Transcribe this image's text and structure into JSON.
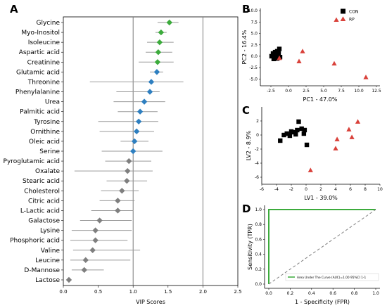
{
  "panels": [
    {
      "letter": "A"
    },
    {
      "letter": "B"
    },
    {
      "letter": "C"
    },
    {
      "letter": "D"
    }
  ],
  "chart_data": [
    {
      "panel": "A",
      "type": "scatter",
      "subtype": "vip-dot-plot-with-error-bars",
      "xlabel": "VIP Scores",
      "ylabel": "",
      "xlim": [
        0,
        2.5
      ],
      "xticks": [
        "0.0",
        "0.5",
        "1.0",
        "1.5",
        "2.0",
        "2.5"
      ],
      "reference_lines": [
        1.0,
        2.0
      ],
      "categories": [
        "Glycine",
        "Myo-Inositol",
        "Isoleucine",
        "Aspartic acid",
        "Creatinine",
        "Glutamic acid",
        "Threonine",
        "Phenylalanine",
        "Urea",
        "Palmitic acid",
        "Tyrosine",
        "Ornithine",
        "Oleic acid",
        "Serine",
        "Pyroglutamic acid",
        "Oxalate",
        "Stearic acid",
        "Cholesterol",
        "Citric acid",
        "L-Lactic acid",
        "Galactose",
        "Lysine",
        "Phosphoric acid",
        "Valine",
        "Leucine",
        "D-Mannose",
        "Lactose"
      ],
      "values": [
        1.52,
        1.4,
        1.38,
        1.36,
        1.35,
        1.34,
        1.26,
        1.24,
        1.16,
        1.1,
        1.08,
        1.05,
        1.02,
        1.0,
        0.94,
        0.92,
        0.91,
        0.84,
        0.78,
        0.78,
        0.52,
        0.46,
        0.46,
        0.42,
        0.32,
        0.3,
        0.08
      ],
      "err_low": [
        1.35,
        1.32,
        1.2,
        1.18,
        1.08,
        1.24,
        0.38,
        0.76,
        0.72,
        0.78,
        0.5,
        0.52,
        0.82,
        0.55,
        0.6,
        0.16,
        0.62,
        0.54,
        0.52,
        0.4,
        0.24,
        0.12,
        0.1,
        0.14,
        0.1,
        0.12,
        0.06
      ],
      "err_high": [
        1.65,
        1.48,
        1.58,
        1.56,
        1.58,
        1.43,
        1.72,
        1.38,
        1.46,
        1.35,
        1.36,
        1.3,
        1.22,
        1.42,
        1.26,
        1.28,
        1.2,
        1.08,
        1.02,
        1.0,
        0.98,
        0.98,
        0.92,
        1.1,
        0.96,
        0.58,
        0.1
      ],
      "colors": [
        "#3cab3c",
        "#3cab3c",
        "#3cab3c",
        "#3cab3c",
        "#3cab3c",
        "#2e7fc0",
        "#2e7fc0",
        "#2e7fc0",
        "#2e7fc0",
        "#2e7fc0",
        "#2e7fc0",
        "#2e7fc0",
        "#2e7fc0",
        "#2e7fc0",
        "#7f7f7f",
        "#7f7f7f",
        "#7f7f7f",
        "#7f7f7f",
        "#7f7f7f",
        "#7f7f7f",
        "#7f7f7f",
        "#7f7f7f",
        "#7f7f7f",
        "#7f7f7f",
        "#7f7f7f",
        "#7f7f7f",
        "#7f7f7f"
      ]
    },
    {
      "panel": "B",
      "type": "scatter",
      "xlabel": "PC1 - 47.0%",
      "ylabel": "PC2 - 16.4%",
      "xlim": [
        -4,
        13
      ],
      "ylim": [
        -6.5,
        10.5
      ],
      "xticks": [
        -2.5,
        0.0,
        2.5,
        5.0,
        7.5,
        10.0,
        12.5
      ],
      "xtick_labels": [
        "-2.5",
        "0.0",
        "2.5",
        "5.0",
        "7.5",
        "10.0",
        "12.5"
      ],
      "yticks": [
        -5.0,
        -2.5,
        0.0,
        2.5,
        5.0,
        7.5,
        10.0
      ],
      "ytick_labels": [
        "-5.0",
        "-2.5",
        "0.0",
        "2.5",
        "5.0",
        "7.5",
        "10.0"
      ],
      "legend": {
        "position": "top-right",
        "entries": [
          "CON",
          "RP"
        ]
      },
      "series": [
        {
          "name": "CON",
          "color": "#000000",
          "marker": "square",
          "x": [
            -2.4,
            -2.2,
            -2.0,
            -1.9,
            -1.8,
            -1.7,
            -1.6,
            -1.5,
            -1.4,
            -1.3,
            -1.2,
            -2.1,
            -1.9,
            -1.6,
            -1.5
          ],
          "y": [
            0.0,
            0.6,
            -0.4,
            0.9,
            0.3,
            -0.3,
            1.1,
            0.1,
            0.6,
            1.6,
            -0.2,
            -0.6,
            0.4,
            -0.5,
            0.8
          ]
        },
        {
          "name": "RP",
          "color": "#d9413a",
          "marker": "triangle",
          "x": [
            -1.3,
            1.5,
            2.0,
            6.8,
            6.5,
            11.0
          ],
          "y": [
            -0.4,
            -1.1,
            1.1,
            8.0,
            -1.6,
            -4.6
          ]
        }
      ]
    },
    {
      "panel": "C",
      "type": "scatter",
      "xlabel": "LV1 - 39.0%",
      "ylabel": "LV2 - 8.9%",
      "xlim": [
        -6,
        10
      ],
      "ylim": [
        -7,
        4
      ],
      "xticks": [
        -6,
        -4,
        -2,
        0,
        2,
        4,
        6,
        8,
        10
      ],
      "xtick_labels": [
        "-6",
        "-4",
        "-2",
        "0",
        "2",
        "4",
        "6",
        "8",
        "10"
      ],
      "yticks": [
        -6,
        -4,
        -2,
        0,
        2
      ],
      "ytick_labels": [
        "-6",
        "-4",
        "-2",
        "0",
        "2"
      ],
      "series": [
        {
          "name": "CON",
          "color": "#000000",
          "marker": "square",
          "x": [
            -3.5,
            -3.0,
            -2.6,
            -2.2,
            -2.0,
            -1.6,
            -1.2,
            -1.0,
            -0.6,
            -0.2,
            0.1,
            -1.4,
            -0.3
          ],
          "y": [
            -0.8,
            0.0,
            0.2,
            -0.1,
            0.5,
            0.4,
            0.7,
            1.9,
            0.9,
            0.7,
            -1.4,
            0.1,
            0.2
          ]
        },
        {
          "name": "RP",
          "color": "#d9413a",
          "marker": "triangle",
          "x": [
            0.6,
            4.0,
            4.2,
            5.8,
            6.2,
            7.0
          ],
          "y": [
            -5.0,
            -1.9,
            -0.6,
            0.8,
            -0.3,
            1.9
          ]
        }
      ]
    },
    {
      "panel": "D",
      "type": "line",
      "xlabel": "1 - Specificity (FPR)",
      "ylabel": "Sensitivity (TPR)",
      "xlim": [
        0.0,
        1.0
      ],
      "ylim": [
        0.0,
        1.0
      ],
      "xticks": [
        0.0,
        0.2,
        0.4,
        0.6,
        0.8,
        1.0
      ],
      "xtick_labels": [
        "0.0",
        "0.2",
        "0.4",
        "0.6",
        "0.8",
        "1.0"
      ],
      "yticks": [
        0.0,
        0.2,
        0.4,
        0.6,
        0.8,
        1.0
      ],
      "ytick_labels": [
        "0.0",
        "0.2",
        "0.4",
        "0.6",
        "0.8",
        "1.0"
      ],
      "legend": {
        "position": "bottom-right",
        "entries": [
          "Area Under The Curve (AUC)=1.00 95%CI 1-1"
        ]
      },
      "series": [
        {
          "name": "Area Under The Curve (AUC)=1.00 95%CI 1-1",
          "color": "#3cab3c",
          "x": [
            0.0,
            0.0,
            1.0
          ],
          "y": [
            0.0,
            1.0,
            1.0
          ]
        },
        {
          "name": "",
          "color": "#808080",
          "dashed": true,
          "x": [
            0.0,
            1.0
          ],
          "y": [
            0.0,
            1.0
          ]
        }
      ]
    }
  ]
}
